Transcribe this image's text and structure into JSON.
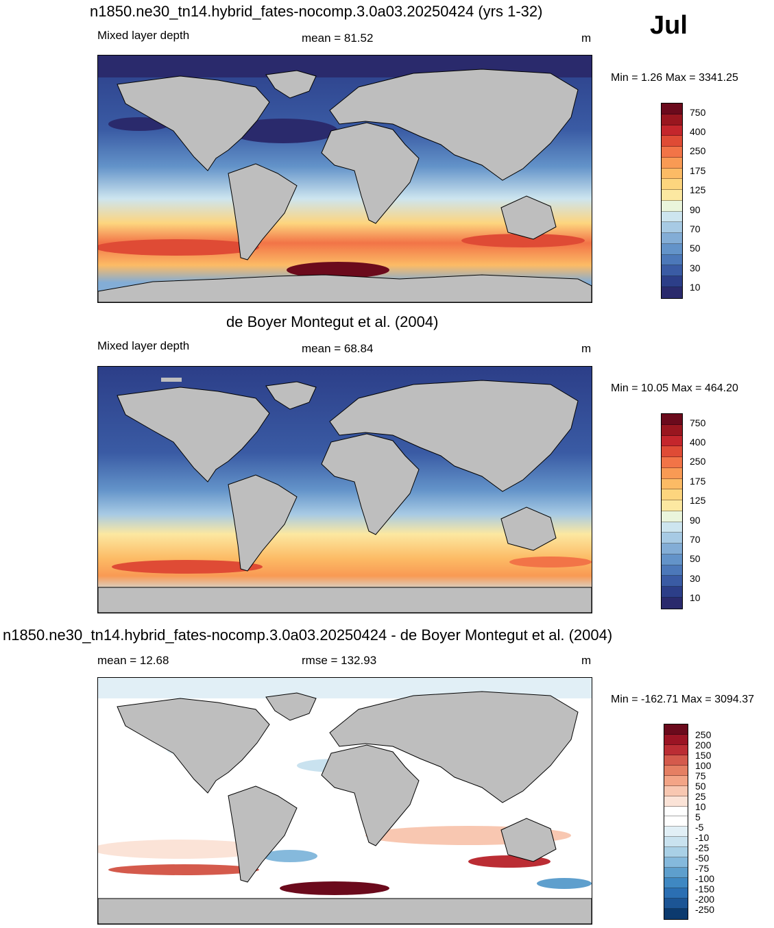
{
  "month": "Jul",
  "colors": {
    "land": "#bebebe",
    "abs_scale": [
      "#2a2a6c",
      "#2c3e88",
      "#3a5ba4",
      "#4c78b9",
      "#6393c9",
      "#83add6",
      "#a7cae4",
      "#cde5ef",
      "#eaf5dc",
      "#fce8a1",
      "#fdd57e",
      "#fcbb65",
      "#f99a54",
      "#f27447",
      "#df4b35",
      "#c4262c",
      "#99161f",
      "#6b0a1c"
    ],
    "diff_scale": [
      "#0c3a6e",
      "#1c5595",
      "#2b6fb3",
      "#3f88c2",
      "#5e9fcd",
      "#85b9dc",
      "#a9d0e6",
      "#c9e2ef",
      "#e1eff6",
      "#ffffff",
      "#ffffff",
      "#fbe3d7",
      "#f8c7b1",
      "#f3a486",
      "#e57f63",
      "#d45a4c",
      "#bb2d34",
      "#9b1424",
      "#6b0a1c"
    ]
  },
  "panels": [
    {
      "id": "model",
      "title": "n1850.ne30_tn14.hybrid_fates-nocomp.3.0a03.20250424 (yrs 1-32)",
      "left_label": "Mixed layer depth",
      "center_label": "mean =  81.52",
      "units": "m",
      "minmax": "Min =   1.26 Max = 3341.25",
      "colorbar_labels": [
        "750",
        "400",
        "250",
        "175",
        "125",
        "90",
        "70",
        "50",
        "30",
        "10"
      ]
    },
    {
      "id": "obs",
      "title": "de Boyer Montegut et al. (2004)",
      "left_label": "Mixed layer depth",
      "center_label": "mean =  68.84",
      "units": "m",
      "minmax": "Min =  10.05 Max = 464.20",
      "colorbar_labels": [
        "750",
        "400",
        "250",
        "175",
        "125",
        "90",
        "70",
        "50",
        "30",
        "10"
      ]
    },
    {
      "id": "diff",
      "title": "n1850.ne30_tn14.hybrid_fates-nocomp.3.0a03.20250424 - de Boyer Montegut et al. (2004)",
      "left_label": "mean =  12.68",
      "center_label": "rmse = 132.93",
      "units": "m",
      "minmax": "Min = -162.71 Max = 3094.37",
      "colorbar_labels": [
        "250",
        "200",
        "150",
        "100",
        "75",
        "50",
        "25",
        "10",
        "5",
        "-5",
        "-10",
        "-25",
        "-50",
        "-75",
        "-100",
        "-150",
        "-200",
        "-250"
      ]
    }
  ]
}
